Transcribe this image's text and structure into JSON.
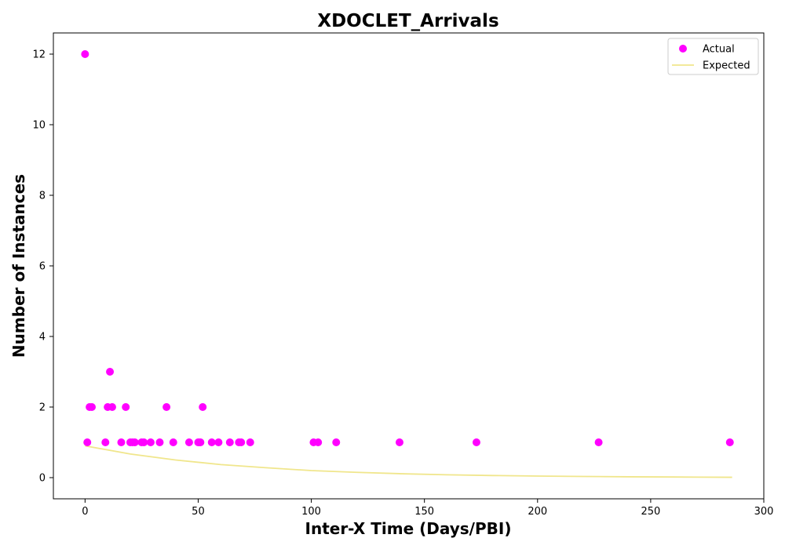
{
  "chart_data": {
    "type": "scatter",
    "title": "XDOCLET_Arrivals",
    "xlabel": "Inter-X Time (Days/PBI)",
    "ylabel": "Number of Instances",
    "xlim": [
      -14,
      300
    ],
    "ylim": [
      -0.6,
      12.6
    ],
    "xticks": [
      0,
      50,
      100,
      150,
      200,
      250,
      300
    ],
    "yticks": [
      0,
      2,
      4,
      6,
      8,
      10,
      12
    ],
    "grid": false,
    "legend_position": "top-right",
    "series": [
      {
        "name": "Actual",
        "kind": "scatter",
        "color": "#ff00ff",
        "points": [
          [
            0,
            12
          ],
          [
            1,
            1
          ],
          [
            2,
            2
          ],
          [
            3,
            2
          ],
          [
            9,
            1
          ],
          [
            10,
            2
          ],
          [
            11,
            3
          ],
          [
            12,
            2
          ],
          [
            16,
            1
          ],
          [
            18,
            2
          ],
          [
            20,
            1
          ],
          [
            21,
            1
          ],
          [
            22,
            1
          ],
          [
            25,
            1
          ],
          [
            26,
            1
          ],
          [
            29,
            1
          ],
          [
            33,
            1
          ],
          [
            36,
            2
          ],
          [
            39,
            1
          ],
          [
            46,
            1
          ],
          [
            50,
            1
          ],
          [
            51,
            1
          ],
          [
            52,
            2
          ],
          [
            56,
            1
          ],
          [
            59,
            1
          ],
          [
            64,
            1
          ],
          [
            68,
            1
          ],
          [
            69,
            1
          ],
          [
            73,
            1
          ],
          [
            101,
            1
          ],
          [
            103,
            1
          ],
          [
            111,
            1
          ],
          [
            139,
            1
          ],
          [
            173,
            1
          ],
          [
            227,
            1
          ],
          [
            285,
            1
          ]
        ]
      },
      {
        "name": "Expected",
        "kind": "line",
        "color": "#f0e68c",
        "points": [
          [
            0,
            0.9
          ],
          [
            20,
            0.67
          ],
          [
            40,
            0.5
          ],
          [
            60,
            0.37
          ],
          [
            80,
            0.28
          ],
          [
            100,
            0.2
          ],
          [
            120,
            0.15
          ],
          [
            140,
            0.11
          ],
          [
            160,
            0.08
          ],
          [
            180,
            0.06
          ],
          [
            200,
            0.045
          ],
          [
            220,
            0.033
          ],
          [
            240,
            0.024
          ],
          [
            260,
            0.018
          ],
          [
            286,
            0.01
          ]
        ]
      }
    ]
  }
}
